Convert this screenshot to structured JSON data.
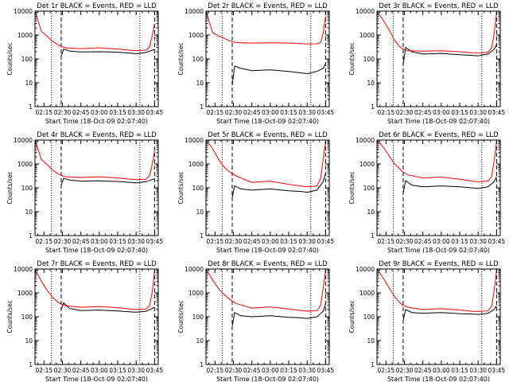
{
  "figure": {
    "x_tick_labels": [
      "02:15",
      "02:30",
      "02:45",
      "03:00",
      "03:15",
      "03:30",
      "03:45"
    ],
    "y_tick_labels": [
      "1",
      "10",
      "100",
      "1000",
      "10000"
    ],
    "colors": {
      "events": "#000000",
      "lld": "#ff0000",
      "axes": "#000000",
      "background": "#ffffff"
    }
  },
  "chart_data": [
    {
      "type": "line",
      "title": "Det 1r BLACK = Events, RED = LLD",
      "xlabel": "Start Time (18-Oct-09 02:07:40)",
      "ylabel": "Counts/sec",
      "x_range": [
        "02:07:40",
        "03:48:00"
      ],
      "ylim": [
        1,
        10000
      ],
      "y_scale": "log",
      "grid": false,
      "dotted_vlines": [
        "02:21",
        "03:33"
      ],
      "dashed_vlines": [
        "02:29",
        "03:45"
      ],
      "series": [
        {
          "color": "black",
          "x": [
            "02:29",
            "02:31",
            "02:36",
            "02:45",
            "03:00",
            "03:15",
            "03:25",
            "03:30",
            "03:38",
            "03:43",
            "03:45"
          ],
          "y": [
            130,
            260,
            210,
            195,
            200,
            190,
            175,
            165,
            185,
            230,
            250
          ]
        },
        {
          "color": "red",
          "x": [
            "02:07:40",
            "02:13",
            "02:18",
            "02:22",
            "02:26",
            "02:29",
            "02:33",
            "02:45",
            "03:00",
            "03:15",
            "03:25",
            "03:30",
            "03:38",
            "03:41",
            "03:43",
            "03:45"
          ],
          "y": [
            10000,
            1400,
            850,
            550,
            400,
            330,
            290,
            270,
            290,
            260,
            230,
            220,
            230,
            320,
            900,
            3000
          ]
        }
      ]
    },
    {
      "type": "line",
      "title": "Det 2r BLACK = Events, RED = LLD",
      "xlabel": "Start Time (18-Oct-09 02:07:40)",
      "ylabel": "Counts/sec",
      "x_range": [
        "02:07:40",
        "03:48:00"
      ],
      "ylim": [
        1,
        10000
      ],
      "y_scale": "log",
      "grid": false,
      "dotted_vlines": [
        "02:21",
        "03:33"
      ],
      "dashed_vlines": [
        "02:29",
        "03:45"
      ],
      "series": [
        {
          "color": "black",
          "x": [
            "02:29",
            "02:31",
            "02:36",
            "02:45",
            "03:00",
            "03:15",
            "03:25",
            "03:30",
            "03:38",
            "03:43",
            "03:45"
          ],
          "y": [
            8,
            50,
            40,
            32,
            35,
            30,
            26,
            24,
            30,
            40,
            60
          ]
        },
        {
          "color": "red",
          "x": [
            "02:07:40",
            "02:13",
            "02:18",
            "02:22",
            "02:26",
            "02:29",
            "02:33",
            "02:45",
            "03:00",
            "03:15",
            "03:25",
            "03:30",
            "03:38",
            "03:41",
            "03:43",
            "03:45"
          ],
          "y": [
            10000,
            1300,
            900,
            750,
            600,
            520,
            480,
            460,
            470,
            460,
            440,
            420,
            430,
            480,
            1200,
            6000
          ]
        }
      ]
    },
    {
      "type": "line",
      "title": "Det 3r BLACK = Events, RED = LLD",
      "xlabel": "Start Time (18-Oct-09 02:07:40)",
      "ylabel": "Counts/sec",
      "x_range": [
        "02:07:40",
        "03:48:00"
      ],
      "ylim": [
        1,
        10000
      ],
      "y_scale": "log",
      "grid": false,
      "dotted_vlines": [
        "02:21",
        "03:33"
      ],
      "dashed_vlines": [
        "02:29",
        "03:45"
      ],
      "series": [
        {
          "color": "black",
          "x": [
            "02:29",
            "02:31",
            "02:36",
            "02:45",
            "03:00",
            "03:15",
            "03:25",
            "03:30",
            "03:38",
            "03:43",
            "03:45"
          ],
          "y": [
            60,
            300,
            200,
            160,
            170,
            150,
            140,
            135,
            160,
            250,
            400
          ]
        },
        {
          "color": "red",
          "x": [
            "02:07:40",
            "02:13",
            "02:18",
            "02:22",
            "02:26",
            "02:29",
            "02:33",
            "02:45",
            "03:00",
            "03:15",
            "03:25",
            "03:30",
            "03:38",
            "03:41",
            "03:43",
            "03:45"
          ],
          "y": [
            10000,
            4000,
            1500,
            600,
            330,
            250,
            220,
            210,
            220,
            200,
            180,
            175,
            190,
            280,
            1100,
            9000
          ]
        }
      ]
    },
    {
      "type": "line",
      "title": "Det 4r BLACK = Events, RED = LLD",
      "xlabel": "Start Time (18-Oct-09 02:07:40)",
      "ylabel": "Counts/sec",
      "x_range": [
        "02:07:40",
        "03:48:00"
      ],
      "ylim": [
        1,
        10000
      ],
      "y_scale": "log",
      "grid": false,
      "dotted_vlines": [
        "02:21",
        "03:33"
      ],
      "dashed_vlines": [
        "02:29",
        "03:45"
      ],
      "series": [
        {
          "color": "black",
          "x": [
            "02:29",
            "02:31",
            "02:36",
            "02:45",
            "03:00",
            "03:15",
            "03:25",
            "03:30",
            "03:38",
            "03:43",
            "03:45"
          ],
          "y": [
            130,
            250,
            210,
            190,
            195,
            185,
            170,
            160,
            180,
            220,
            240
          ]
        },
        {
          "color": "red",
          "x": [
            "02:07:40",
            "02:13",
            "02:18",
            "02:22",
            "02:26",
            "02:29",
            "02:33",
            "02:45",
            "03:00",
            "03:15",
            "03:25",
            "03:30",
            "03:38",
            "03:41",
            "03:43",
            "03:45"
          ],
          "y": [
            10000,
            1500,
            900,
            560,
            400,
            330,
            290,
            270,
            290,
            260,
            230,
            220,
            230,
            320,
            950,
            3500
          ]
        }
      ]
    },
    {
      "type": "line",
      "title": "Det 5r BLACK = Events, RED = LLD",
      "xlabel": "Start Time (18-Oct-09 02:07:40)",
      "ylabel": "Counts/sec",
      "x_range": [
        "02:07:40",
        "03:48:00"
      ],
      "ylim": [
        1,
        10000
      ],
      "y_scale": "log",
      "grid": false,
      "dotted_vlines": [
        "02:21",
        "03:33"
      ],
      "dashed_vlines": [
        "02:29",
        "03:45"
      ],
      "series": [
        {
          "color": "black",
          "x": [
            "02:29",
            "02:31",
            "02:36",
            "02:45",
            "03:00",
            "03:15",
            "03:25",
            "03:30",
            "03:38",
            "03:43",
            "03:45"
          ],
          "y": [
            40,
            120,
            90,
            80,
            90,
            75,
            70,
            65,
            80,
            180,
            400
          ]
        },
        {
          "color": "red",
          "x": [
            "02:07:40",
            "02:13",
            "02:18",
            "02:22",
            "02:26",
            "02:29",
            "02:33",
            "02:45",
            "03:00",
            "03:15",
            "03:25",
            "03:30",
            "03:38",
            "03:41",
            "03:43",
            "03:45"
          ],
          "y": [
            10000,
            4500,
            1500,
            800,
            500,
            400,
            300,
            170,
            190,
            140,
            120,
            110,
            120,
            250,
            1500,
            9000
          ]
        }
      ]
    },
    {
      "type": "line",
      "title": "Det 6r BLACK = Events, RED = LLD",
      "xlabel": "Start Time (18-Oct-09 02:07:40)",
      "ylabel": "Counts/sec",
      "x_range": [
        "02:07:40",
        "03:48:00"
      ],
      "ylim": [
        1,
        10000
      ],
      "y_scale": "log",
      "grid": false,
      "dotted_vlines": [
        "02:21",
        "03:33"
      ],
      "dashed_vlines": [
        "02:29",
        "03:45"
      ],
      "series": [
        {
          "color": "black",
          "x": [
            "02:29",
            "02:31",
            "02:36",
            "02:45",
            "03:00",
            "03:15",
            "03:25",
            "03:30",
            "03:38",
            "03:43",
            "03:45"
          ],
          "y": [
            60,
            200,
            130,
            110,
            120,
            110,
            100,
            95,
            110,
            180,
            300
          ]
        },
        {
          "color": "red",
          "x": [
            "02:07:40",
            "02:13",
            "02:18",
            "02:22",
            "02:26",
            "02:29",
            "02:33",
            "02:45",
            "03:00",
            "03:15",
            "03:25",
            "03:30",
            "03:38",
            "03:41",
            "03:43",
            "03:45"
          ],
          "y": [
            10000,
            5000,
            2000,
            1000,
            650,
            450,
            350,
            260,
            280,
            230,
            190,
            180,
            190,
            300,
            1300,
            9000
          ]
        }
      ]
    },
    {
      "type": "line",
      "title": "Det 7r BLACK = Events, RED = LLD",
      "xlabel": "Start Time (18-Oct-09 02:07:40)",
      "ylabel": "Counts/sec",
      "x_range": [
        "02:07:40",
        "03:48:00"
      ],
      "ylim": [
        1,
        10000
      ],
      "y_scale": "log",
      "grid": false,
      "dotted_vlines": [
        "02:21",
        "03:33"
      ],
      "dashed_vlines": [
        "02:29",
        "03:45"
      ],
      "series": [
        {
          "color": "black",
          "x": [
            "02:29",
            "02:31",
            "02:36",
            "02:45",
            "03:00",
            "03:15",
            "03:25",
            "03:30",
            "03:38",
            "03:43",
            "03:45"
          ],
          "y": [
            200,
            380,
            220,
            180,
            190,
            175,
            160,
            155,
            170,
            220,
            250
          ]
        },
        {
          "color": "red",
          "x": [
            "02:07:40",
            "02:13",
            "02:18",
            "02:22",
            "02:26",
            "02:29",
            "02:33",
            "02:45",
            "03:00",
            "03:15",
            "03:25",
            "03:30",
            "03:38",
            "03:41",
            "03:43",
            "03:45"
          ],
          "y": [
            10000,
            3000,
            1200,
            650,
            420,
            330,
            290,
            250,
            270,
            240,
            210,
            200,
            210,
            300,
            1000,
            8000
          ]
        }
      ]
    },
    {
      "type": "line",
      "title": "Det 8r BLACK = Events, RED = LLD",
      "xlabel": "Start Time (18-Oct-09 02:07:40)",
      "ylabel": "Counts/sec",
      "x_range": [
        "02:07:40",
        "03:48:00"
      ],
      "ylim": [
        1,
        10000
      ],
      "y_scale": "log",
      "grid": false,
      "dotted_vlines": [
        "02:21",
        "03:33"
      ],
      "dashed_vlines": [
        "02:29",
        "03:45"
      ],
      "series": [
        {
          "color": "black",
          "x": [
            "02:29",
            "02:31",
            "02:36",
            "02:45",
            "03:00",
            "03:15",
            "03:25",
            "03:30",
            "03:38",
            "03:43",
            "03:45"
          ],
          "y": [
            40,
            150,
            110,
            100,
            110,
            95,
            90,
            85,
            100,
            170,
            350
          ]
        },
        {
          "color": "red",
          "x": [
            "02:07:40",
            "02:13",
            "02:18",
            "02:22",
            "02:26",
            "02:29",
            "02:33",
            "02:45",
            "03:00",
            "03:15",
            "03:25",
            "03:30",
            "03:38",
            "03:41",
            "03:43",
            "03:45"
          ],
          "y": [
            10000,
            3500,
            1500,
            900,
            600,
            450,
            350,
            230,
            260,
            210,
            180,
            170,
            180,
            300,
            1500,
            9000
          ]
        }
      ]
    },
    {
      "type": "line",
      "title": "Det 9r BLACK = Events, RED = LLD",
      "xlabel": "Start Time (18-Oct-09 02:07:40)",
      "ylabel": "Counts/sec",
      "x_range": [
        "02:07:40",
        "03:48:00"
      ],
      "ylim": [
        1,
        10000
      ],
      "y_scale": "log",
      "grid": false,
      "dotted_vlines": [
        "02:21",
        "03:33"
      ],
      "dashed_vlines": [
        "02:29",
        "03:45"
      ],
      "series": [
        {
          "color": "black",
          "x": [
            "02:29",
            "02:31",
            "02:36",
            "02:45",
            "03:00",
            "03:15",
            "03:25",
            "03:30",
            "03:38",
            "03:43",
            "03:45"
          ],
          "y": [
            70,
            200,
            150,
            140,
            150,
            135,
            130,
            125,
            140,
            200,
            300
          ]
        },
        {
          "color": "red",
          "x": [
            "02:07:40",
            "02:13",
            "02:18",
            "02:22",
            "02:26",
            "02:29",
            "02:33",
            "02:45",
            "03:00",
            "03:15",
            "03:25",
            "03:30",
            "03:38",
            "03:41",
            "03:43",
            "03:45"
          ],
          "y": [
            10000,
            4000,
            1500,
            700,
            400,
            300,
            250,
            200,
            220,
            190,
            170,
            165,
            175,
            280,
            1200,
            9000
          ]
        }
      ]
    }
  ]
}
